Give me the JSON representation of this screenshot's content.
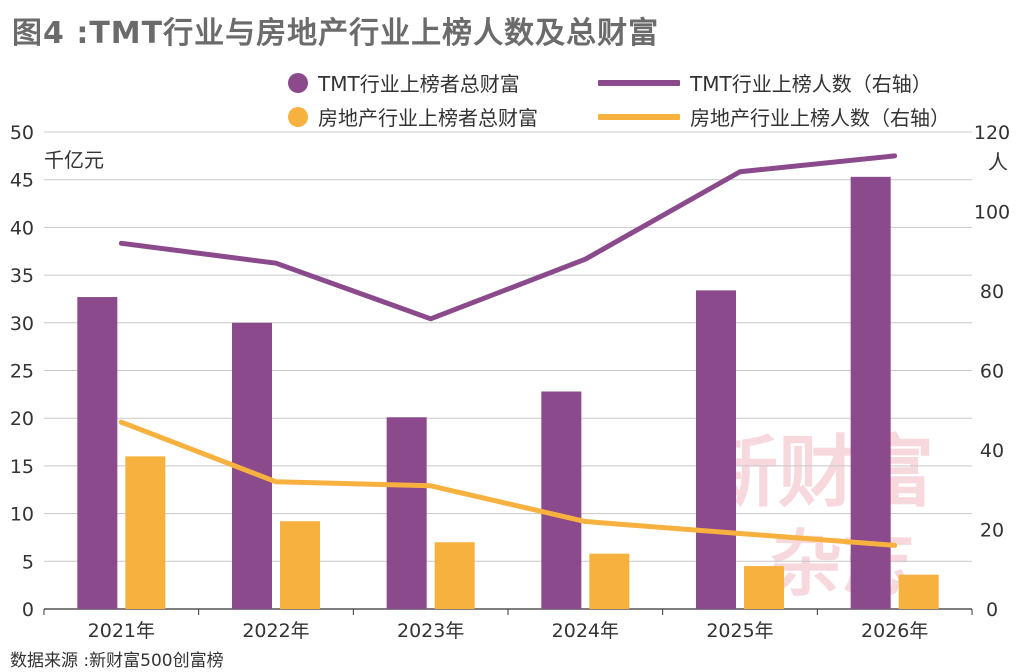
{
  "header": {
    "title": "图4 :TMT行业与房地产行业上榜人数及总财富"
  },
  "footer": {
    "source": "数据来源 :新财富500创富榜"
  },
  "watermark": {
    "line1": "新财富",
    "line2": "杂志"
  },
  "colors": {
    "tmt": "#8b4a8c",
    "realestate": "#f7b13f",
    "grid": "#c8c8c8"
  },
  "chart_data": {
    "type": "bar",
    "categories": [
      "2021年",
      "2022年",
      "2023年",
      "2024年",
      "2025年",
      "2026年"
    ],
    "left_axis": {
      "unit": "千亿元",
      "ylim": [
        0,
        50
      ],
      "ticks": [
        "0",
        "5",
        "10",
        "15",
        "20",
        "25",
        "30",
        "35",
        "40",
        "45",
        "50"
      ]
    },
    "right_axis": {
      "unit": "人",
      "ylim": [
        0,
        120
      ],
      "ticks": [
        "0",
        "20",
        "40",
        "60",
        "80",
        "100",
        "120"
      ]
    },
    "series": [
      {
        "name": "TMT行业上榜者总财富",
        "kind": "bar",
        "axis": "left",
        "values": [
          32.7,
          30.0,
          20.1,
          22.8,
          33.4,
          45.3
        ]
      },
      {
        "name": "房地产行业上榜者总财富",
        "kind": "bar",
        "axis": "left",
        "values": [
          16.0,
          9.2,
          7.0,
          5.8,
          4.5,
          3.6
        ]
      },
      {
        "name": "TMT行业上榜人数（右轴）",
        "kind": "line",
        "axis": "right",
        "values": [
          92,
          87,
          73,
          88,
          110,
          114
        ]
      },
      {
        "name": "房地产行业上榜人数（右轴）",
        "kind": "line",
        "axis": "right",
        "values": [
          47,
          32,
          31,
          22,
          19,
          16
        ]
      }
    ],
    "grid": true,
    "legend_position": "top"
  }
}
